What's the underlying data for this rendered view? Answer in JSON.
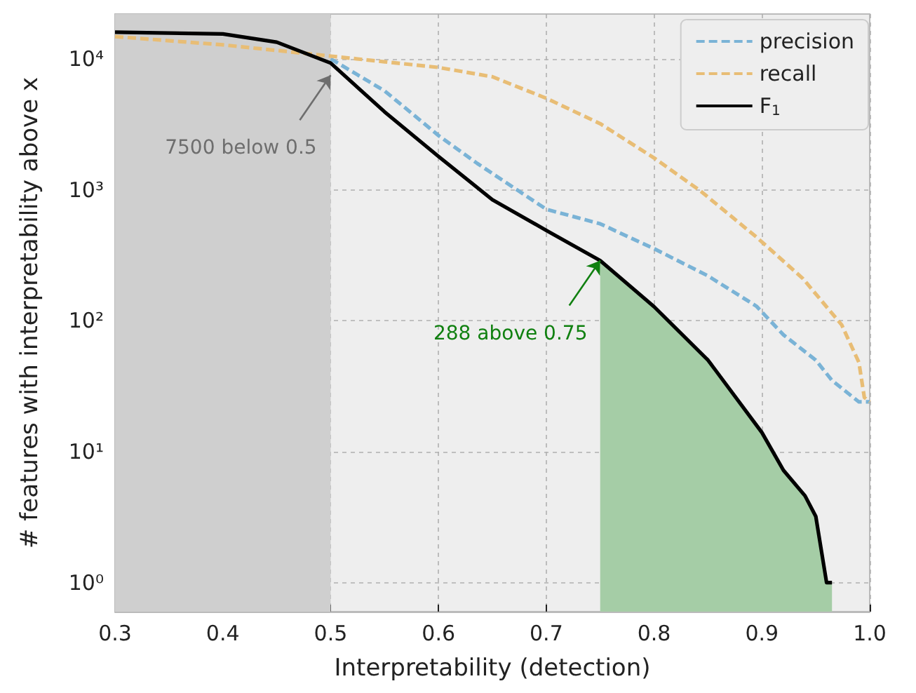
{
  "chart_data": {
    "type": "line",
    "xlabel": "Interpretability (detection)",
    "ylabel": "# features with interpretability above x",
    "xlim": [
      0.3,
      1.0
    ],
    "xticks": [
      0.3,
      0.4,
      0.5,
      0.6,
      0.7,
      0.8,
      0.9,
      {
        "value": 1,
        "label": "1.0"
      }
    ],
    "ylim": [
      0.6,
      22000
    ],
    "yticks": [
      {
        "value": 1,
        "label": "10⁰"
      },
      {
        "value": 10,
        "label": "10¹"
      },
      {
        "value": 100,
        "label": "10²"
      },
      {
        "value": 1000,
        "label": "10³"
      },
      {
        "value": 10000,
        "label": "10⁴"
      }
    ],
    "log": "y",
    "grid": true,
    "legend": "top right",
    "marker": "none",
    "bands": [
      {
        "axis": "x",
        "from": 0.3,
        "to": 0.5,
        "color": "#cfcfcf"
      }
    ],
    "series": [
      {
        "type": "area",
        "color": "#a5cda6",
        "x": [
          0.75,
          0.8,
          0.85,
          0.9,
          0.92,
          0.94,
          0.95,
          0.96,
          0.965
        ],
        "values": [
          288,
          128,
          50,
          14,
          7.2,
          4.6,
          3.2,
          1,
          1
        ]
      },
      {
        "name": "precision",
        "color": "#7ab3d6",
        "line_style": "dashed",
        "x": [
          0.5,
          0.55,
          0.6,
          0.636,
          0.7,
          0.75,
          0.8,
          0.85,
          0.895,
          0.92,
          0.95,
          0.965,
          0.99,
          1.0
        ],
        "values": [
          10000,
          5700,
          2600,
          1590,
          710,
          550,
          355,
          220,
          129,
          78,
          50,
          35,
          24,
          24
        ]
      },
      {
        "name": "recall",
        "color": "#e8bd75",
        "line_style": "dashed",
        "x": [
          0.3,
          0.4,
          0.5,
          0.55,
          0.6,
          0.65,
          0.7,
          0.75,
          0.8,
          0.843,
          0.895,
          0.938,
          0.974,
          0.99,
          0.995,
          1.0
        ],
        "values": [
          14800,
          12800,
          10500,
          9500,
          8600,
          7300,
          5000,
          3200,
          1750,
          980,
          435,
          210,
          93,
          48,
          26,
          24
        ]
      },
      {
        "name": "F$_{1}$",
        "color": "#000000",
        "line_style": "solid",
        "x": [
          0.3,
          0.4,
          0.45,
          0.5,
          0.55,
          0.6,
          0.65,
          0.7,
          0.75,
          0.8,
          0.85,
          0.9,
          0.92,
          0.94,
          0.95,
          0.96,
          0.965
        ],
        "values": [
          16000,
          15500,
          13400,
          9300,
          3940,
          1800,
          840,
          490,
          288,
          128,
          50,
          14,
          7.2,
          4.6,
          3.2,
          1,
          1
        ]
      }
    ],
    "annotations": [
      {
        "text": "7500 below 0.5",
        "x": 0.5,
        "y": 7500
      },
      {
        "text": "288 above 0.75",
        "x": 0.75,
        "y": 288
      }
    ]
  }
}
